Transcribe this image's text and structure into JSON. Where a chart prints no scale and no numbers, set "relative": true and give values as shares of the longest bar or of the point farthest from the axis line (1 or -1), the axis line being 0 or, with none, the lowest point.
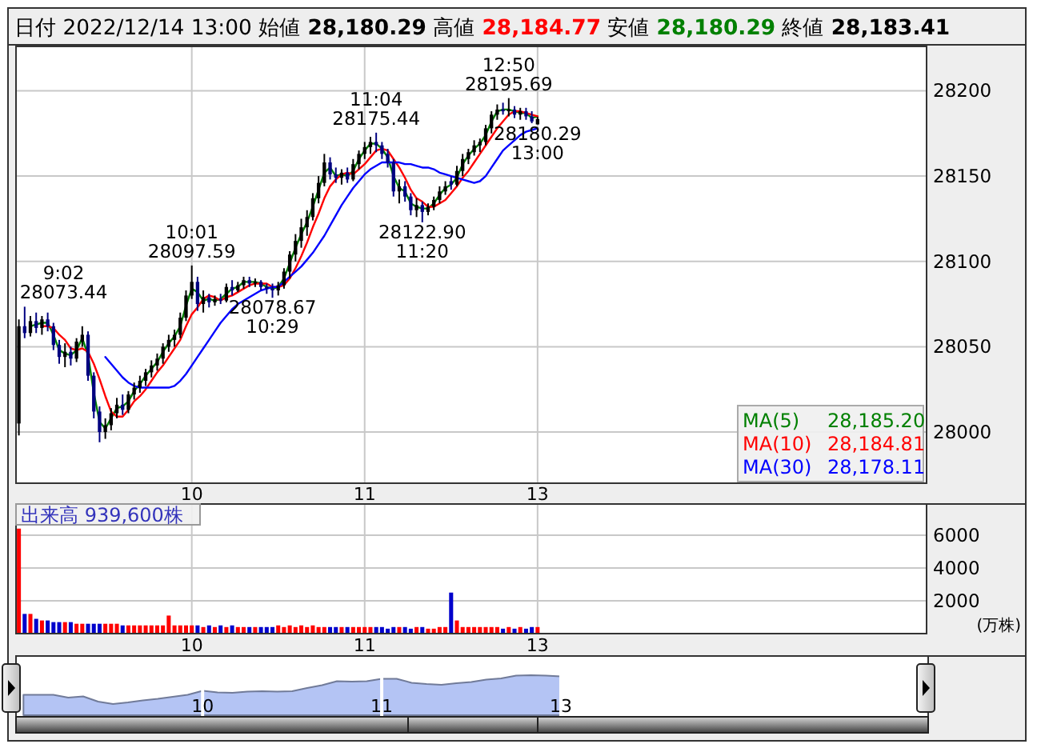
{
  "chart_data": [
    {
      "type": "other",
      "annotations": [
        "日付",
        "2022/12/14 13:00",
        "始値",
        "28,180.29",
        "高値",
        "28,184.77",
        "安値",
        "28,180.29",
        "終値",
        "28,183.41"
      ]
    },
    {
      "type": "candlestick",
      "categories": [
        null,
        null,
        null,
        null,
        null,
        null,
        null,
        null,
        null,
        null,
        null,
        null,
        null,
        null,
        null,
        null,
        null,
        null,
        null,
        null,
        null,
        null,
        null,
        null,
        null,
        null,
        null,
        null,
        null,
        null,
        "10",
        null,
        null,
        null,
        null,
        null,
        null,
        null,
        null,
        null,
        null,
        null,
        null,
        null,
        null,
        null,
        null,
        null,
        null,
        null,
        null,
        null,
        null,
        null,
        null,
        null,
        null,
        null,
        null,
        null,
        "11",
        null,
        null,
        null,
        null,
        null,
        null,
        null,
        null,
        null,
        null,
        null,
        null,
        null,
        null,
        null,
        null,
        null,
        null,
        null,
        null,
        null,
        null,
        null,
        null,
        null,
        null,
        null,
        null,
        null,
        "13",
        null,
        null,
        null,
        null,
        null,
        null,
        null,
        null,
        null,
        null,
        null,
        null,
        null,
        null,
        null,
        null,
        null,
        null,
        null,
        null,
        null,
        null,
        null,
        null,
        null,
        null,
        null,
        null,
        null,
        null,
        null,
        null,
        null,
        null,
        null,
        null,
        null,
        null,
        null,
        null,
        null,
        null,
        null,
        null,
        null,
        null,
        null,
        null,
        null,
        null,
        null,
        null,
        null,
        null,
        null,
        null,
        null,
        null,
        null,
        null,
        null,
        null,
        null,
        null,
        null,
        null,
        null
      ],
      "ohlc": [
        [
          28005,
          28066,
          27998,
          28062
        ],
        [
          28062,
          28073.44,
          28055,
          28058
        ],
        [
          28058,
          28068,
          28056,
          28065
        ],
        [
          28065,
          28070,
          28058,
          28061
        ],
        [
          28061,
          28068,
          28057,
          28066
        ],
        [
          28066,
          28070,
          28059,
          28062
        ],
        [
          28062,
          28064,
          28048,
          28051
        ],
        [
          28051,
          28054,
          28040,
          28044
        ],
        [
          28044,
          28052,
          28038,
          28047
        ],
        [
          28047,
          28050,
          28039,
          28043
        ],
        [
          28043,
          28055,
          28041,
          28053
        ],
        [
          28053,
          28062,
          28050,
          28057
        ],
        [
          28057,
          28059,
          28030,
          28033
        ],
        [
          28033,
          28035,
          28008,
          28012
        ],
        [
          28012,
          28015,
          27994,
          28000
        ],
        [
          28000,
          28008,
          27996,
          28004
        ],
        [
          28004,
          28014,
          28001,
          28011
        ],
        [
          28011,
          28020,
          28008,
          28016
        ],
        [
          28016,
          28022,
          28010,
          28013
        ],
        [
          28013,
          28024,
          28011,
          28022
        ],
        [
          28022,
          28029,
          28019,
          28026
        ],
        [
          28026,
          28033,
          28023,
          28030
        ],
        [
          28030,
          28037,
          28027,
          28035
        ],
        [
          28035,
          28042,
          28032,
          28039
        ],
        [
          28039,
          28046,
          28036,
          28043
        ],
        [
          28043,
          28052,
          28040,
          28050
        ],
        [
          28050,
          28057,
          28047,
          28054
        ],
        [
          28054,
          28060,
          28050,
          28057
        ],
        [
          28057,
          28070,
          28055,
          28067
        ],
        [
          28067,
          28083,
          28065,
          28080
        ],
        [
          28080,
          28097.59,
          28078,
          28088
        ],
        [
          28088,
          28091,
          28071,
          28075
        ],
        [
          28075,
          28083,
          28070,
          28079
        ],
        [
          28079,
          28081,
          28073,
          28076
        ],
        [
          28076,
          28080,
          28074,
          28078
        ],
        [
          28078,
          28081,
          28075,
          28077
        ],
        [
          28077,
          28087,
          28076,
          28085
        ],
        [
          28085,
          28089,
          28080,
          28083
        ],
        [
          28083,
          28088,
          28082,
          28086
        ],
        [
          28086,
          28091,
          28084,
          28089
        ],
        [
          28089,
          28091,
          28085,
          28087
        ],
        [
          28087,
          28090,
          28085,
          28088
        ],
        [
          28088,
          28089,
          28083,
          28085
        ],
        [
          28085,
          28087,
          28081,
          28084
        ],
        [
          28084,
          28087,
          28078.67,
          28083
        ],
        [
          28083,
          28088,
          28080,
          28086
        ],
        [
          28086,
          28096,
          28084,
          28094
        ],
        [
          28094,
          28106,
          28090,
          28104
        ],
        [
          28104,
          28116,
          28100,
          28112
        ],
        [
          28112,
          28125,
          28108,
          28120
        ],
        [
          28120,
          28130,
          28115,
          28126
        ],
        [
          28126,
          28140,
          28124,
          28137
        ],
        [
          28137,
          28150,
          28134,
          28146
        ],
        [
          28146,
          28163,
          28144,
          28158
        ],
        [
          28158,
          28161,
          28148,
          28151
        ],
        [
          28151,
          28155,
          28146,
          28149
        ],
        [
          28149,
          28154,
          28145,
          28152
        ],
        [
          28152,
          28155,
          28146,
          28148
        ],
        [
          28148,
          28160,
          28147,
          28157
        ],
        [
          28157,
          28165,
          28154,
          28163
        ],
        [
          28163,
          28170,
          28160,
          28167
        ],
        [
          28167,
          28173,
          28163,
          28170
        ],
        [
          28170,
          28175.44,
          28164,
          28168
        ],
        [
          28168,
          28170,
          28160,
          28163
        ],
        [
          28163,
          28166,
          28155,
          28158
        ],
        [
          28158,
          28160,
          28138,
          28141
        ],
        [
          28141,
          28148,
          28134,
          28144
        ],
        [
          28144,
          28147,
          28135,
          28138
        ],
        [
          28138,
          28140,
          28127,
          28130
        ],
        [
          28130,
          28137,
          28126,
          28133
        ],
        [
          28133,
          28135,
          28122.9,
          28129
        ],
        [
          28129,
          28134,
          28127,
          28132
        ],
        [
          28132,
          28138,
          28130,
          28136
        ],
        [
          28136,
          28144,
          28134,
          28141
        ],
        [
          28141,
          28147,
          28139,
          28144
        ],
        [
          28147,
          28150,
          28142,
          28145
        ],
        [
          28145,
          28156,
          28144,
          28153
        ],
        [
          28153,
          28163,
          28150,
          28160
        ],
        [
          28160,
          28166,
          28157,
          28164
        ],
        [
          28164,
          28171,
          28162,
          28168
        ],
        [
          28168,
          28172,
          28164,
          28170
        ],
        [
          28170,
          28180,
          28168,
          28178
        ],
        [
          28178,
          28188,
          28175,
          28186
        ],
        [
          28186,
          28192,
          28183,
          28189
        ],
        [
          28189,
          28193,
          28186,
          28188
        ],
        [
          28188,
          28195.69,
          28185,
          28189
        ],
        [
          28189,
          28191,
          28184,
          28186
        ],
        [
          28186,
          28190,
          28183,
          28188
        ],
        [
          28188,
          28190,
          28183,
          28185
        ],
        [
          28185,
          28188,
          28181,
          28182
        ],
        [
          28180.29,
          28184.77,
          28180.29,
          28183.41
        ],
        null,
        null,
        null,
        null,
        null,
        null,
        null,
        null,
        null,
        null,
        null,
        null,
        null,
        null,
        null,
        null,
        null,
        null,
        null,
        null,
        null,
        null,
        null,
        null,
        null,
        null,
        null,
        null,
        null,
        null,
        null,
        null,
        null,
        null,
        null,
        null,
        null,
        null,
        null,
        null,
        null,
        null,
        null,
        null,
        null,
        null,
        null,
        null,
        null,
        null,
        null,
        null,
        null,
        null,
        null,
        null,
        null,
        null,
        null,
        null,
        null,
        null,
        null,
        null,
        null,
        null,
        null
      ],
      "series": [
        {
          "name": "MA(5) 28,185.20",
          "type": "line",
          "color": "#008000",
          "values": [
            null,
            null,
            28062,
            28063,
            28064,
            28064,
            28057,
            28048,
            28046,
            28045,
            28048,
            28055,
            28045,
            28023,
            28006,
            28002,
            28008,
            28014,
            28015,
            28018,
            28024,
            28028,
            28033,
            28037,
            28041,
            28047,
            28052,
            28056,
            28062,
            28074,
            28084,
            28082,
            28077,
            28078,
            28077,
            28078,
            28081,
            28084,
            28085,
            28088,
            28088,
            28088,
            28087,
            28085,
            28084,
            28085,
            28090,
            28099,
            28108,
            28116,
            28123,
            28132,
            28142,
            28152,
            28155,
            28150,
            28151,
            28150,
            28153,
            28160,
            28165,
            28169,
            28169,
            28166,
            28161,
            28150,
            28143,
            28141,
            28134,
            28132,
            28131,
            28131,
            28134,
            28139,
            28143,
            28145,
            28149,
            28157,
            28162,
            28166,
            28169,
            28174,
            28182,
            28188,
            28189,
            28189,
            28188,
            28187,
            28187,
            28184,
            28185,
            null,
            null,
            null,
            null,
            null,
            null,
            null,
            null,
            null,
            null,
            null,
            null,
            null,
            null,
            null,
            null,
            null,
            null,
            null,
            null,
            null,
            null,
            null,
            null,
            null,
            null,
            null,
            null,
            null,
            null,
            null,
            null,
            null,
            null,
            null,
            null,
            null,
            null,
            null,
            null,
            null,
            null,
            null,
            null,
            null,
            null,
            null,
            null,
            null,
            null,
            null,
            null,
            null,
            null,
            null,
            null,
            null,
            null,
            null,
            null,
            null,
            null,
            null,
            null,
            null,
            null,
            null
          ]
        },
        {
          "name": "MA(10) 28,184.81",
          "type": "line",
          "color": "#ff0000",
          "values": [
            null,
            null,
            null,
            null,
            28062,
            28062,
            28061,
            28057,
            28054,
            28049,
            28048,
            28049,
            28047,
            28040,
            28031,
            28021,
            28012,
            28009,
            28009,
            28013,
            28018,
            28021,
            28025,
            28030,
            28035,
            28039,
            28044,
            28049,
            28054,
            28062,
            28069,
            28073,
            28078,
            28080,
            28079,
            28077,
            28079,
            28080,
            28082,
            28084,
            28086,
            28087,
            28087,
            28087,
            28085,
            28085,
            28086,
            28090,
            28096,
            28103,
            28111,
            28120,
            28128,
            28137,
            28144,
            28148,
            28151,
            28152,
            28151,
            28154,
            28157,
            28161,
            28165,
            28166,
            28165,
            28160,
            28155,
            28149,
            28142,
            28137,
            28135,
            28132,
            28132,
            28134,
            28136,
            28140,
            28144,
            28149,
            28153,
            28158,
            28163,
            28168,
            28173,
            28178,
            28182,
            28186,
            28188,
            28188,
            28187,
            28186,
            28185,
            null,
            null,
            null,
            null,
            null,
            null,
            null,
            null,
            null,
            null,
            null,
            null,
            null,
            null,
            null,
            null,
            null,
            null,
            null,
            null,
            null,
            null,
            null,
            null,
            null,
            null,
            null,
            null,
            null,
            null,
            null,
            null,
            null,
            null,
            null,
            null,
            null,
            null,
            null,
            null,
            null,
            null,
            null,
            null,
            null,
            null,
            null,
            null,
            null,
            null,
            null,
            null,
            null,
            null,
            null,
            null,
            null,
            null,
            null,
            null,
            null,
            null,
            null,
            null,
            null,
            null,
            null
          ]
        },
        {
          "name": "MA(30) 28,178.11",
          "type": "line",
          "color": "#0000ff",
          "values": [
            null,
            null,
            null,
            null,
            null,
            null,
            null,
            null,
            null,
            null,
            null,
            null,
            null,
            null,
            null,
            28044,
            28040,
            28036,
            28032,
            28029,
            28027,
            28026,
            28026,
            28026,
            28026,
            28026,
            28026,
            28027,
            28030,
            28034,
            28039,
            28044,
            28049,
            28054,
            28059,
            28064,
            28068,
            28072,
            28075,
            28077,
            28079,
            28081,
            28083,
            28084,
            28085,
            28085,
            28088,
            28091,
            28094,
            28097,
            28101,
            28105,
            28110,
            28115,
            28121,
            28127,
            28133,
            28138,
            28143,
            28147,
            28151,
            28154,
            28156,
            28158,
            28158,
            28158,
            28158,
            28157,
            28157,
            28156,
            28155,
            28155,
            28154,
            28152,
            28151,
            28150,
            28149,
            28148,
            28147,
            28146,
            28147,
            28150,
            28155,
            28160,
            28165,
            28168,
            28171,
            28174,
            28176,
            28177,
            28178,
            null,
            null,
            null,
            null,
            null,
            null,
            null,
            null,
            null,
            null,
            null,
            null,
            null,
            null,
            null,
            null,
            null,
            null,
            null,
            null,
            null,
            null,
            null,
            null,
            null,
            null,
            null,
            null,
            null,
            null,
            null,
            null,
            null,
            null,
            null,
            null,
            null,
            null,
            null,
            null,
            null,
            null,
            null,
            null,
            null,
            null,
            null,
            null,
            null,
            null,
            null,
            null,
            null,
            null,
            null,
            null,
            null,
            null,
            null,
            null,
            null,
            null,
            null,
            null,
            null,
            null,
            null
          ]
        }
      ],
      "ylim": [
        27970,
        28226
      ],
      "yticks": [
        28000,
        28050,
        28100,
        28150,
        28200
      ],
      "grid": true,
      "legend": "bottom right",
      "annotations": [
        "9:02\n28073.44",
        {
          "text": "10:01\n28097.59",
          "y": 28097.59
        },
        {
          "text": "28078.67\n10:29",
          "y": 28078.67
        },
        {
          "text": "11:04\n28175.44",
          "y": 28175.44
        },
        {
          "text": "28122.90\n11:20",
          "y": 28122.9
        },
        {
          "text": "12:50\n28195.69",
          "y": 28195.69
        },
        {
          "text": "28180.29\n13:00",
          "y": 28180.29
        }
      ]
    },
    {
      "type": "bar",
      "title": "出来高 939,600株",
      "ylabel": "(万株)",
      "categories": [
        null,
        null,
        null,
        null,
        null,
        null,
        null,
        null,
        null,
        null,
        null,
        null,
        null,
        null,
        null,
        null,
        null,
        null,
        null,
        null,
        null,
        null,
        null,
        null,
        null,
        null,
        null,
        null,
        null,
        null,
        "10",
        null,
        null,
        null,
        null,
        null,
        null,
        null,
        null,
        null,
        null,
        null,
        null,
        null,
        null,
        null,
        null,
        null,
        null,
        null,
        null,
        null,
        null,
        null,
        null,
        null,
        null,
        null,
        null,
        null,
        "11",
        null,
        null,
        null,
        null,
        null,
        null,
        null,
        null,
        null,
        null,
        null,
        null,
        null,
        null,
        null,
        null,
        null,
        null,
        null,
        null,
        null,
        null,
        null,
        null,
        null,
        null,
        null,
        null,
        null,
        "13",
        null,
        null,
        null,
        null,
        null,
        null,
        null,
        null,
        null,
        null,
        null,
        null,
        null,
        null,
        null,
        null,
        null,
        null,
        null,
        null,
        null,
        null,
        null,
        null,
        null,
        null,
        null,
        null,
        null,
        null,
        null,
        null,
        null,
        null,
        null,
        null,
        null,
        null,
        null,
        null,
        null,
        null,
        null,
        null,
        null,
        null,
        null,
        null,
        null,
        null,
        null,
        null,
        null,
        null,
        null,
        null,
        null,
        null,
        null,
        null,
        null,
        null,
        null,
        null,
        null,
        null,
        null
      ],
      "values": [
        6400,
        1200,
        1200,
        900,
        800,
        800,
        700,
        700,
        700,
        700,
        600,
        600,
        600,
        600,
        600,
        600,
        600,
        600,
        500,
        500,
        500,
        500,
        500,
        500,
        500,
        500,
        1100,
        500,
        500,
        500,
        500,
        500,
        400,
        500,
        400,
        500,
        400,
        500,
        400,
        400,
        400,
        400,
        400,
        400,
        400,
        500,
        400,
        500,
        400,
        500,
        400,
        500,
        400,
        400,
        400,
        400,
        400,
        400,
        400,
        400,
        400,
        400,
        400,
        400,
        300,
        400,
        400,
        400,
        300,
        400,
        400,
        300,
        300,
        400,
        400,
        2500,
        800,
        400,
        400,
        400,
        400,
        400,
        400,
        400,
        300,
        400,
        300,
        400,
        300,
        400,
        400,
        null,
        null,
        null,
        null,
        null,
        null,
        null,
        null,
        null,
        null,
        null,
        null,
        null,
        null,
        null,
        null,
        null,
        null,
        null,
        null,
        null,
        null,
        null,
        null,
        null,
        null,
        null,
        null,
        null,
        null,
        null,
        null,
        null,
        null,
        null,
        null,
        null,
        null,
        null,
        null,
        null,
        null,
        null,
        null,
        null,
        null,
        null,
        null,
        null,
        null,
        null,
        null,
        null,
        null,
        null,
        null,
        null,
        null,
        null,
        null,
        null,
        null,
        null,
        null,
        null,
        null,
        null
      ],
      "colors": [
        "#ff0000",
        "#0000cc",
        "#ff0000",
        "#0000cc",
        "#ff0000",
        "#0000cc",
        "#0000cc",
        "#0000cc",
        "#ff0000",
        "#0000cc",
        "#ff0000",
        "#ff0000",
        "#0000cc",
        "#0000cc",
        "#0000cc",
        "#ff0000",
        "#ff0000",
        "#ff0000",
        "#0000cc",
        "#ff0000",
        "#ff0000",
        "#ff0000",
        "#ff0000",
        "#ff0000",
        "#ff0000",
        "#ff0000",
        "#ff0000",
        "#ff0000",
        "#ff0000",
        "#ff0000",
        "#ff0000",
        "#0000cc",
        "#ff0000",
        "#0000cc",
        "#ff0000",
        "#0000cc",
        "#ff0000",
        "#0000cc",
        "#ff0000",
        "#ff0000",
        "#0000cc",
        "#ff0000",
        "#0000cc",
        "#0000cc",
        "#0000cc",
        "#ff0000",
        "#ff0000",
        "#ff0000",
        "#ff0000",
        "#ff0000",
        "#ff0000",
        "#ff0000",
        "#ff0000",
        "#ff0000",
        "#0000cc",
        "#0000cc",
        "#ff0000",
        "#0000cc",
        "#ff0000",
        "#ff0000",
        "#ff0000",
        "#ff0000",
        "#0000cc",
        "#0000cc",
        "#0000cc",
        "#0000cc",
        "#ff0000",
        "#0000cc",
        "#0000cc",
        "#ff0000",
        "#0000cc",
        "#ff0000",
        "#ff0000",
        "#ff0000",
        "#ff0000",
        "#0000cc",
        "#ff0000",
        "#ff0000",
        "#ff0000",
        "#ff0000",
        "#ff0000",
        "#ff0000",
        "#ff0000",
        "#ff0000",
        "#0000cc",
        "#ff0000",
        "#0000cc",
        "#ff0000",
        "#0000cc",
        "#0000cc",
        "#ff0000",
        null,
        null,
        null,
        null,
        null,
        null,
        null,
        null,
        null,
        null,
        null,
        null,
        null,
        null,
        null,
        null,
        null,
        null,
        null,
        null,
        null,
        null,
        null,
        null,
        null,
        null,
        null,
        null,
        null,
        null,
        null,
        null,
        null,
        null,
        null,
        null,
        null,
        null,
        null,
        null,
        null,
        null,
        null,
        null,
        null,
        null,
        null,
        null,
        null,
        null,
        null,
        null,
        null,
        null,
        null,
        null,
        null,
        null,
        null,
        null,
        null,
        null,
        null,
        null,
        null,
        null,
        null
      ],
      "ylim": [
        0,
        7900
      ],
      "yticks": [
        2000,
        4000,
        6000
      ],
      "grid": true
    },
    {
      "type": "area",
      "relative": true,
      "color": "#b4c4f4",
      "grid": "x",
      "categories": [
        null,
        null,
        null,
        null,
        null,
        null,
        null,
        null,
        null,
        null,
        null,
        null,
        "10",
        null,
        null,
        null,
        null,
        null,
        null,
        null,
        null,
        null,
        null,
        null,
        "11",
        null,
        null,
        null,
        null,
        null,
        null,
        null,
        null,
        null,
        null,
        null,
        "13",
        null,
        null,
        null,
        null,
        null,
        null,
        null,
        null,
        null,
        null,
        null,
        null,
        null,
        null,
        null,
        null,
        null,
        null,
        null,
        null,
        null,
        null,
        null,
        null
      ],
      "values": [
        0.51,
        0.51,
        0.51,
        0.44,
        0.47,
        0.34,
        0.28,
        0.32,
        0.37,
        0.41,
        0.46,
        0.51,
        0.61,
        0.57,
        0.56,
        0.59,
        0.6,
        0.59,
        0.6,
        0.68,
        0.75,
        0.85,
        0.84,
        0.85,
        0.91,
        0.91,
        0.81,
        0.78,
        0.76,
        0.8,
        0.83,
        0.89,
        0.92,
        0.99,
        1,
        0.99,
        0.97,
        null,
        null,
        null,
        null,
        null,
        null,
        null,
        null,
        null,
        null,
        null,
        null,
        null,
        null,
        null,
        null,
        null,
        null,
        null,
        null,
        null,
        null,
        null,
        null
      ]
    }
  ]
}
